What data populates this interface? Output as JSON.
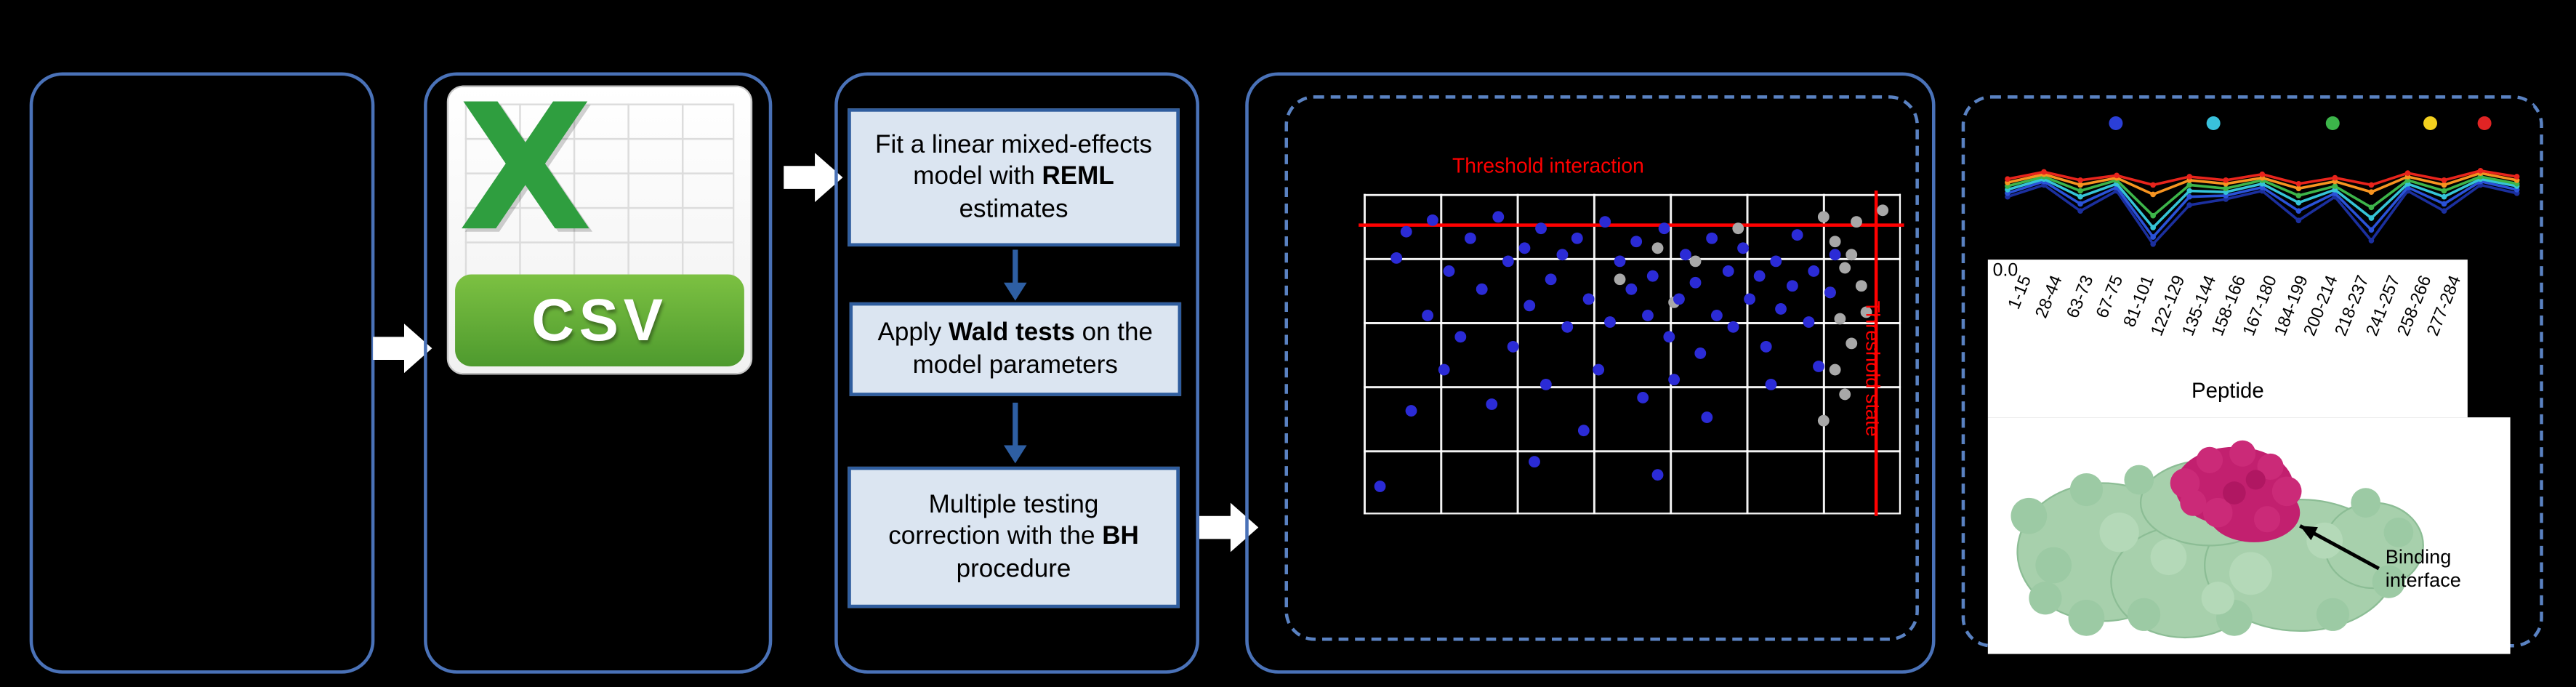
{
  "colors": {
    "panel_border": "#4a72b8",
    "dashed_border": "#5a82c2",
    "process_fill": "#dbe5f1",
    "process_border": "#2f5d9e",
    "arrow_blue": "#2e5fa3",
    "flow_arrow_white": "#ffffff",
    "threshold_red": "#ff0000",
    "scatter_dot_blue": "#2b2bd6",
    "scatter_dot_gray": "#a8a8a8",
    "csv_banner_green": "#5fa832",
    "excel_x_green": "#2f9e3f",
    "protein_green": "#a7d0ac",
    "binding_magenta": "#c2206f"
  },
  "csv_icon": {
    "letter": "X",
    "label": "CSV"
  },
  "workflow": {
    "steps": [
      {
        "before": "Fit a linear mixed-effects model with ",
        "bold": "REML",
        "after": " estimates"
      },
      {
        "before": "Apply ",
        "bold": "Wald tests",
        "after": " on the model parameters"
      },
      {
        "before": "Multiple testing correction with the ",
        "bold": "BH",
        "after": " procedure"
      }
    ]
  },
  "scatter_plot": {
    "threshold_interaction_label": "Threshold interaction",
    "threshold_state_label": "Threshold state",
    "hline_top_pct": 9.5,
    "vline_left_pct": 95.4,
    "blue_points": [
      [
        3,
        92
      ],
      [
        6,
        20
      ],
      [
        8,
        12
      ],
      [
        9,
        68
      ],
      [
        12,
        38
      ],
      [
        13,
        8
      ],
      [
        15,
        55
      ],
      [
        16,
        24
      ],
      [
        18,
        45
      ],
      [
        20,
        14
      ],
      [
        22,
        30
      ],
      [
        24,
        66
      ],
      [
        25,
        7
      ],
      [
        27,
        21
      ],
      [
        28,
        48
      ],
      [
        30,
        17
      ],
      [
        31,
        35
      ],
      [
        33,
        11
      ],
      [
        34,
        60
      ],
      [
        35,
        27
      ],
      [
        37,
        19
      ],
      [
        38,
        42
      ],
      [
        40,
        14
      ],
      [
        41,
        74
      ],
      [
        42,
        33
      ],
      [
        44,
        55
      ],
      [
        45,
        9
      ],
      [
        46,
        40
      ],
      [
        48,
        21
      ],
      [
        50,
        30
      ],
      [
        51,
        15
      ],
      [
        52,
        64
      ],
      [
        53,
        38
      ],
      [
        54,
        26
      ],
      [
        56,
        11
      ],
      [
        57,
        45
      ],
      [
        58,
        58
      ],
      [
        59,
        33
      ],
      [
        60,
        19
      ],
      [
        62,
        28
      ],
      [
        63,
        50
      ],
      [
        64,
        70
      ],
      [
        65,
        14
      ],
      [
        66,
        38
      ],
      [
        68,
        24
      ],
      [
        69,
        42
      ],
      [
        71,
        17
      ],
      [
        72,
        33
      ],
      [
        74,
        26
      ],
      [
        75,
        48
      ],
      [
        76,
        60
      ],
      [
        77,
        21
      ],
      [
        78,
        36
      ],
      [
        80,
        29
      ],
      [
        81,
        13
      ],
      [
        83,
        40
      ],
      [
        84,
        24
      ],
      [
        85,
        54
      ],
      [
        87,
        31
      ],
      [
        88,
        19
      ],
      [
        55,
        88
      ],
      [
        32,
        84
      ]
    ],
    "gray_points": [
      [
        48,
        27
      ],
      [
        55,
        17
      ],
      [
        62,
        21
      ],
      [
        70,
        11
      ],
      [
        58,
        34
      ],
      [
        86,
        7
      ],
      [
        88,
        15
      ],
      [
        90,
        23
      ],
      [
        87,
        31
      ],
      [
        89,
        39
      ],
      [
        91,
        47
      ],
      [
        88,
        55
      ],
      [
        90,
        63
      ],
      [
        86,
        71
      ],
      [
        92,
        9
      ],
      [
        93,
        29
      ],
      [
        91,
        19
      ],
      [
        97,
        5
      ],
      [
        94,
        37
      ]
    ]
  },
  "uptake_chart": {
    "y_tick": "0.0",
    "x_axis_label": "Peptide",
    "x_labels": [
      "1-15",
      "28-44",
      "63-73",
      "67-75",
      "81-101",
      "122-129",
      "135-144",
      "158-166",
      "167-180",
      "184-199",
      "200-214",
      "218-237",
      "241-257",
      "258-266",
      "277-284"
    ],
    "top_dots": [
      {
        "color": "#2b3fd8",
        "x": 0.23
      },
      {
        "color": "#39c1dc",
        "x": 0.41
      },
      {
        "color": "#3cb54a",
        "x": 0.63
      },
      {
        "color": "#f3d01e",
        "x": 0.81
      },
      {
        "color": "#e02424",
        "x": 0.91
      }
    ],
    "series": [
      {
        "color": "#1b2f9e",
        "values": [
          0.42,
          0.52,
          0.3,
          0.47,
          0.02,
          0.35,
          0.4,
          0.47,
          0.22,
          0.42,
          0.05,
          0.47,
          0.3,
          0.52,
          0.45
        ]
      },
      {
        "color": "#2a52d8",
        "values": [
          0.45,
          0.55,
          0.36,
          0.5,
          0.08,
          0.42,
          0.43,
          0.5,
          0.3,
          0.45,
          0.14,
          0.5,
          0.36,
          0.55,
          0.48
        ]
      },
      {
        "color": "#35c4d7",
        "values": [
          0.48,
          0.57,
          0.42,
          0.53,
          0.16,
          0.47,
          0.46,
          0.53,
          0.37,
          0.48,
          0.24,
          0.53,
          0.42,
          0.57,
          0.51
        ]
      },
      {
        "color": "#3db54a",
        "values": [
          0.51,
          0.59,
          0.47,
          0.56,
          0.26,
          0.52,
          0.49,
          0.56,
          0.43,
          0.51,
          0.33,
          0.56,
          0.47,
          0.59,
          0.53
        ]
      },
      {
        "color": "#f79420",
        "values": [
          0.54,
          0.61,
          0.52,
          0.58,
          0.44,
          0.56,
          0.53,
          0.58,
          0.49,
          0.55,
          0.46,
          0.59,
          0.52,
          0.62,
          0.56
        ]
      },
      {
        "color": "#e8241c",
        "values": [
          0.57,
          0.63,
          0.56,
          0.6,
          0.52,
          0.59,
          0.56,
          0.61,
          0.53,
          0.58,
          0.52,
          0.62,
          0.56,
          0.64,
          0.59
        ]
      }
    ]
  },
  "protein": {
    "annotation": "Binding interface"
  }
}
